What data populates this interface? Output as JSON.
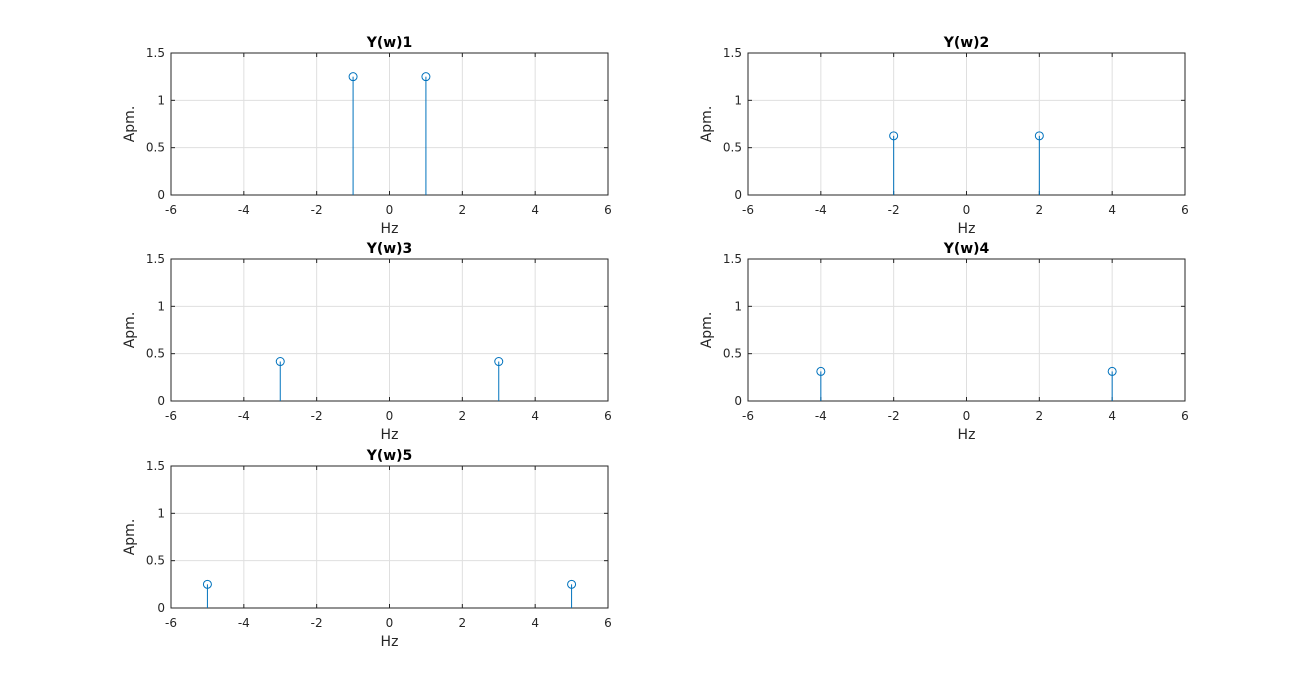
{
  "colors": {
    "stem": "#0072BD",
    "grid": "#DFDFDF",
    "axis": "#262626"
  },
  "chart_data": [
    {
      "type": "stem",
      "title": "Y(w)1",
      "xlabel": "Hz",
      "ylabel": "Apm.",
      "xlim": [
        -6,
        6
      ],
      "ylim": [
        0,
        1.5
      ],
      "xticks": [
        "-6",
        "-4",
        "-2",
        "0",
        "2",
        "4",
        "6"
      ],
      "yticks": [
        "0",
        "0.5",
        "1",
        "1.5"
      ],
      "grid": true,
      "points": [
        {
          "x": -1,
          "y": 1.25
        },
        {
          "x": 1,
          "y": 1.25
        }
      ]
    },
    {
      "type": "stem",
      "title": "Y(w)2",
      "xlabel": "Hz",
      "ylabel": "Apm.",
      "xlim": [
        -6,
        6
      ],
      "ylim": [
        0,
        1.5
      ],
      "xticks": [
        "-6",
        "-4",
        "-2",
        "0",
        "2",
        "4",
        "6"
      ],
      "yticks": [
        "0",
        "0.5",
        "1",
        "1.5"
      ],
      "grid": true,
      "points": [
        {
          "x": -2,
          "y": 0.625
        },
        {
          "x": 2,
          "y": 0.625
        }
      ]
    },
    {
      "type": "stem",
      "title": "Y(w)3",
      "xlabel": "Hz",
      "ylabel": "Apm.",
      "xlim": [
        -6,
        6
      ],
      "ylim": [
        0,
        1.5
      ],
      "xticks": [
        "-6",
        "-4",
        "-2",
        "0",
        "2",
        "4",
        "6"
      ],
      "yticks": [
        "0",
        "0.5",
        "1",
        "1.5"
      ],
      "grid": true,
      "points": [
        {
          "x": -3,
          "y": 0.417
        },
        {
          "x": 3,
          "y": 0.417
        }
      ]
    },
    {
      "type": "stem",
      "title": "Y(w)4",
      "xlabel": "Hz",
      "ylabel": "Apm.",
      "xlim": [
        -6,
        6
      ],
      "ylim": [
        0,
        1.5
      ],
      "xticks": [
        "-6",
        "-4",
        "-2",
        "0",
        "2",
        "4",
        "6"
      ],
      "yticks": [
        "0",
        "0.5",
        "1",
        "1.5"
      ],
      "grid": true,
      "points": [
        {
          "x": -4,
          "y": 0.3125
        },
        {
          "x": 4,
          "y": 0.3125
        }
      ]
    },
    {
      "type": "stem",
      "title": "Y(w)5",
      "xlabel": "Hz",
      "ylabel": "Apm.",
      "xlim": [
        -6,
        6
      ],
      "ylim": [
        0,
        1.5
      ],
      "xticks": [
        "-6",
        "-4",
        "-2",
        "0",
        "2",
        "4",
        "6"
      ],
      "yticks": [
        "0",
        "0.5",
        "1",
        "1.5"
      ],
      "grid": true,
      "points": [
        {
          "x": -5,
          "y": 0.25
        },
        {
          "x": 5,
          "y": 0.25
        }
      ]
    }
  ]
}
